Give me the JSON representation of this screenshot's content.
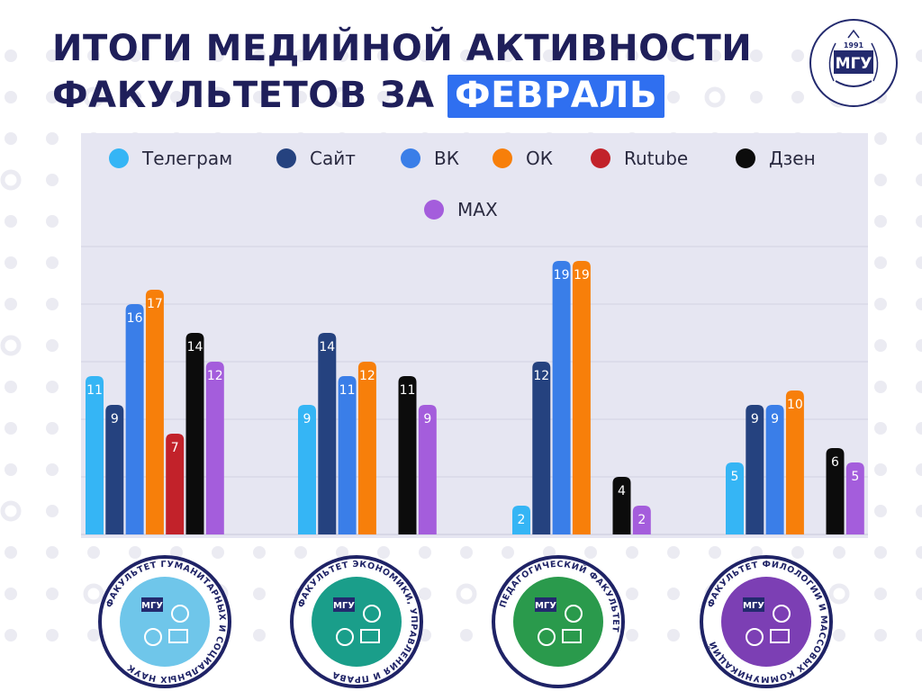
{
  "header": {
    "title_line1": "ИТОГИ МЕДИЙНОЙ АКТИВНОСТИ",
    "title_line2_prefix": "ФАКУЛЬТЕТОВ ЗА",
    "title_highlight": "ФЕВРАЛЬ",
    "highlight_color": "#2f6ff0"
  },
  "logo": {
    "year": "1991",
    "name": "МГУ",
    "colors": {
      "navy": "#232a6e"
    }
  },
  "chart_data": {
    "type": "bar",
    "title": "ИТОГИ МЕДИЙНОЙ АКТИВНОСТИ ФАКУЛЬТЕТОВ ЗА ФЕВРАЛЬ",
    "xlabel": "",
    "ylabel": "",
    "ylim": [
      0,
      20
    ],
    "grid": true,
    "legend": "top",
    "categories": [
      "Факультет гуманитарных и социальных наук",
      "Факультет экономики, управления и права",
      "Педагогический факультет",
      "Факультет филологии и массовых коммуникаций"
    ],
    "series": [
      {
        "name": "Телеграм",
        "color": "#35b5f5",
        "values": [
          11,
          9,
          2,
          5
        ]
      },
      {
        "name": "Сайт",
        "color": "#25427f",
        "values": [
          9,
          14,
          12,
          9
        ]
      },
      {
        "name": "ВК",
        "color": "#3a7ee8",
        "values": [
          16,
          11,
          19,
          9
        ]
      },
      {
        "name": "ОК",
        "color": "#f77f0a",
        "values": [
          17,
          12,
          19,
          10
        ]
      },
      {
        "name": "Rutube",
        "color": "#c2222a",
        "values": [
          7,
          null,
          null,
          null
        ]
      },
      {
        "name": "Дзен",
        "color": "#0c0c0c",
        "values": [
          14,
          11,
          4,
          6
        ]
      },
      {
        "name": "MAX",
        "color": "#a45ddc",
        "values": [
          12,
          9,
          2,
          5
        ]
      }
    ]
  },
  "faculties": [
    {
      "title": "ФАКУЛЬТЕТ ГУМАНИТАРНЫХ И СОЦИАЛЬНЫХ НАУК",
      "short": "МГУ",
      "color": "#6fc6ea",
      "icon": "people-globe-icon"
    },
    {
      "title": "ФАКУЛЬТЕТ ЭКОНОМИКИ, УПРАВЛЕНИЯ И ПРАВА",
      "short": "МГУ",
      "color": "#1a9e8a",
      "icon": "owl-scales-icon"
    },
    {
      "title": "ПЕДАГОГИЧЕСКИЙ ФАКУЛЬТЕТ",
      "short": "МГУ",
      "color": "#2a9a4c",
      "icon": "olympic-rings-icon"
    },
    {
      "title": "ФАКУЛЬТЕТ ФИЛОЛОГИИ И МАССОВЫХ КОММУНИКАЦИЙ",
      "short": "МГУ",
      "color": "#7c3fb4",
      "icon": "psi-megaphone-icon"
    }
  ]
}
